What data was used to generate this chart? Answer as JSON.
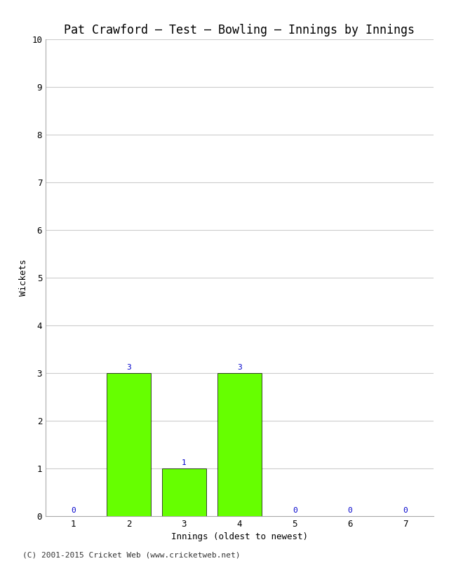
{
  "title": "Pat Crawford – Test – Bowling – Innings by Innings",
  "xlabel": "Innings (oldest to newest)",
  "ylabel": "Wickets",
  "x_values": [
    1,
    2,
    3,
    4,
    5,
    6,
    7
  ],
  "y_values": [
    0,
    3,
    1,
    3,
    0,
    0,
    0
  ],
  "bar_color": "#66ff00",
  "bar_edge_color": "#000000",
  "label_color": "#0000cc",
  "ylim": [
    0,
    10
  ],
  "xlim": [
    0.5,
    7.5
  ],
  "yticks": [
    0,
    1,
    2,
    3,
    4,
    5,
    6,
    7,
    8,
    9,
    10
  ],
  "xticks": [
    1,
    2,
    3,
    4,
    5,
    6,
    7
  ],
  "background_color": "#ffffff",
  "footer": "(C) 2001-2015 Cricket Web (www.cricketweb.net)",
  "title_fontsize": 12,
  "axis_label_fontsize": 9,
  "tick_fontsize": 9,
  "label_fontsize": 8,
  "footer_fontsize": 8,
  "bar_width": 0.8,
  "grid_color": "#cccccc",
  "grid_linewidth": 0.8,
  "spine_color": "#aaaaaa"
}
